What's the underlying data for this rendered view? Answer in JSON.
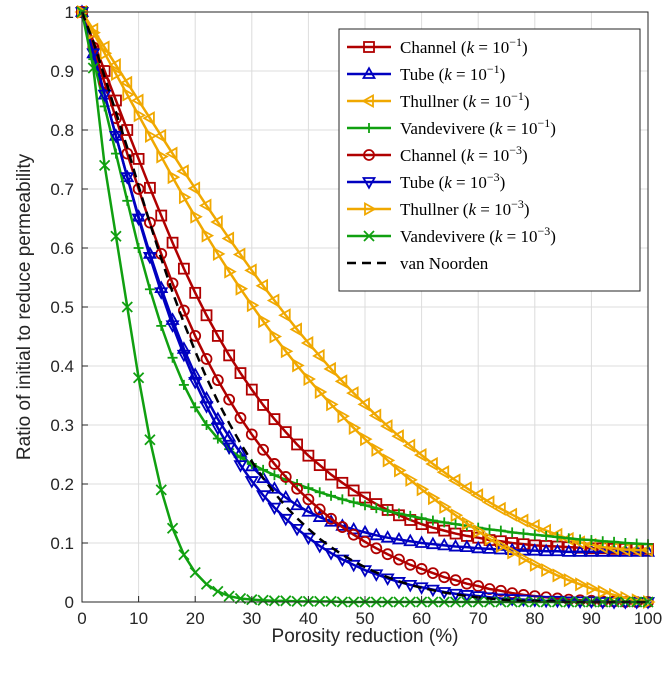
{
  "chart_data": {
    "type": "line",
    "xlabel": "Porosity reduction (%)",
    "ylabel": "Ratio of initial to reduce permeability",
    "xlim": [
      0,
      100
    ],
    "ylim": [
      0,
      1
    ],
    "x_ticks": [
      "0",
      "10",
      "20",
      "30",
      "40",
      "50",
      "60",
      "70",
      "80",
      "90",
      "100"
    ],
    "y_ticks": [
      "0",
      "0.1",
      "0.2",
      "0.3",
      "0.4",
      "0.5",
      "0.6",
      "0.7",
      "0.8",
      "0.9",
      "1"
    ],
    "grid": true,
    "legend_position": "top-right",
    "x": [
      0,
      2,
      4,
      6,
      8,
      10,
      12,
      14,
      16,
      18,
      20,
      22,
      24,
      26,
      28,
      30,
      32,
      34,
      36,
      38,
      40,
      42,
      44,
      46,
      48,
      50,
      52,
      54,
      56,
      58,
      60,
      62,
      64,
      66,
      68,
      70,
      72,
      74,
      76,
      78,
      80,
      82,
      84,
      86,
      88,
      90,
      92,
      94,
      96,
      98,
      100
    ],
    "series": [
      {
        "name": "Channel (k = 10^-1)",
        "color": "#b00000",
        "marker": "square",
        "values": [
          1.0,
          0.95,
          0.9,
          0.85,
          0.8,
          0.751,
          0.702,
          0.655,
          0.609,
          0.565,
          0.524,
          0.486,
          0.451,
          0.418,
          0.388,
          0.36,
          0.334,
          0.31,
          0.288,
          0.267,
          0.248,
          0.232,
          0.216,
          0.202,
          0.189,
          0.177,
          0.166,
          0.156,
          0.147,
          0.139,
          0.132,
          0.126,
          0.121,
          0.116,
          0.112,
          0.109,
          0.105,
          0.103,
          0.1,
          0.098,
          0.096,
          0.095,
          0.094,
          0.093,
          0.092,
          0.091,
          0.091,
          0.09,
          0.09,
          0.09,
          0.09
        ]
      },
      {
        "name": "Tube (k = 10^-1)",
        "color": "#0000c0",
        "marker": "triangle-up",
        "values": [
          1.0,
          0.93,
          0.86,
          0.79,
          0.72,
          0.653,
          0.59,
          0.532,
          0.478,
          0.429,
          0.385,
          0.345,
          0.31,
          0.28,
          0.253,
          0.23,
          0.21,
          0.192,
          0.177,
          0.164,
          0.153,
          0.144,
          0.136,
          0.129,
          0.123,
          0.118,
          0.113,
          0.109,
          0.106,
          0.103,
          0.1,
          0.098,
          0.096,
          0.094,
          0.093,
          0.091,
          0.09,
          0.089,
          0.088,
          0.087,
          0.087,
          0.086,
          0.086,
          0.085,
          0.085,
          0.085,
          0.085,
          0.085,
          0.085,
          0.085,
          0.085
        ]
      },
      {
        "name": "Thullner (k = 10^-1)",
        "color": "#f0a800",
        "marker": "triangle-left",
        "values": [
          1.0,
          0.97,
          0.94,
          0.91,
          0.88,
          0.85,
          0.82,
          0.79,
          0.76,
          0.73,
          0.701,
          0.672,
          0.644,
          0.616,
          0.589,
          0.562,
          0.536,
          0.511,
          0.486,
          0.462,
          0.439,
          0.417,
          0.395,
          0.374,
          0.354,
          0.335,
          0.316,
          0.298,
          0.281,
          0.265,
          0.249,
          0.234,
          0.22,
          0.206,
          0.193,
          0.181,
          0.169,
          0.158,
          0.148,
          0.138,
          0.129,
          0.121,
          0.114,
          0.107,
          0.101,
          0.097,
          0.093,
          0.091,
          0.089,
          0.088,
          0.088
        ]
      },
      {
        "name": "Vandevivere (k = 10^-1)",
        "color": "#10a010",
        "marker": "plus",
        "values": [
          1.0,
          0.92,
          0.84,
          0.76,
          0.68,
          0.6,
          0.53,
          0.468,
          0.414,
          0.368,
          0.33,
          0.3,
          0.277,
          0.259,
          0.245,
          0.234,
          0.224,
          0.215,
          0.207,
          0.2,
          0.193,
          0.186,
          0.18,
          0.174,
          0.169,
          0.164,
          0.159,
          0.154,
          0.15,
          0.146,
          0.142,
          0.138,
          0.135,
          0.132,
          0.129,
          0.126,
          0.123,
          0.121,
          0.118,
          0.116,
          0.114,
          0.112,
          0.11,
          0.108,
          0.106,
          0.105,
          0.103,
          0.102,
          0.1,
          0.099,
          0.098
        ]
      },
      {
        "name": "Channel (k = 10^-3)",
        "color": "#b00000",
        "marker": "circle",
        "values": [
          1.0,
          0.94,
          0.88,
          0.82,
          0.76,
          0.7,
          0.643,
          0.59,
          0.54,
          0.494,
          0.451,
          0.412,
          0.376,
          0.343,
          0.312,
          0.284,
          0.258,
          0.234,
          0.212,
          0.192,
          0.174,
          0.157,
          0.141,
          0.127,
          0.114,
          0.102,
          0.091,
          0.081,
          0.072,
          0.063,
          0.056,
          0.049,
          0.042,
          0.037,
          0.031,
          0.027,
          0.022,
          0.019,
          0.015,
          0.012,
          0.01,
          0.008,
          0.006,
          0.004,
          0.003,
          0.002,
          0.001,
          0.001,
          0.0,
          0.0,
          0.0
        ]
      },
      {
        "name": "Tube (k = 10^-3)",
        "color": "#0000c0",
        "marker": "triangle-down",
        "values": [
          1.0,
          0.93,
          0.86,
          0.79,
          0.72,
          0.65,
          0.585,
          0.525,
          0.469,
          0.419,
          0.373,
          0.332,
          0.295,
          0.262,
          0.232,
          0.205,
          0.181,
          0.16,
          0.141,
          0.124,
          0.109,
          0.095,
          0.083,
          0.072,
          0.063,
          0.054,
          0.047,
          0.04,
          0.034,
          0.029,
          0.025,
          0.021,
          0.017,
          0.014,
          0.012,
          0.01,
          0.008,
          0.006,
          0.005,
          0.004,
          0.003,
          0.002,
          0.002,
          0.001,
          0.001,
          0.001,
          0.0,
          0.0,
          0.0,
          0.0,
          0.0
        ]
      },
      {
        "name": "Thullner (k = 10^-3)",
        "color": "#f0a800",
        "marker": "triangle-right",
        "values": [
          1.0,
          0.965,
          0.93,
          0.895,
          0.86,
          0.825,
          0.79,
          0.755,
          0.72,
          0.686,
          0.653,
          0.621,
          0.59,
          0.56,
          0.531,
          0.503,
          0.476,
          0.45,
          0.425,
          0.401,
          0.378,
          0.356,
          0.335,
          0.315,
          0.295,
          0.276,
          0.258,
          0.24,
          0.223,
          0.207,
          0.191,
          0.176,
          0.161,
          0.147,
          0.133,
          0.12,
          0.107,
          0.095,
          0.084,
          0.073,
          0.063,
          0.054,
          0.045,
          0.037,
          0.03,
          0.023,
          0.017,
          0.012,
          0.007,
          0.003,
          0.0
        ]
      },
      {
        "name": "Vandevivere (k = 10^-3)",
        "color": "#10a010",
        "marker": "x",
        "values": [
          1.0,
          0.905,
          0.74,
          0.62,
          0.5,
          0.38,
          0.275,
          0.19,
          0.125,
          0.08,
          0.05,
          0.03,
          0.018,
          0.01,
          0.006,
          0.004,
          0.003,
          0.002,
          0.002,
          0.001,
          0.001,
          0.001,
          0.001,
          0.0,
          0.0,
          0.0,
          0.0,
          0.0,
          0.0,
          0.0,
          0.0,
          0.0,
          0.0,
          0.0,
          0.0,
          0.0,
          0.0,
          0.0,
          0.0,
          0.0,
          0.0,
          0.0,
          0.0,
          0.0,
          0.0,
          0.0,
          0.0,
          0.0,
          0.0,
          0.0,
          0.0
        ]
      },
      {
        "name": "van Noorden",
        "color": "#000000",
        "marker": "none",
        "dashed": true,
        "values": [
          1.0,
          0.95,
          0.89,
          0.83,
          0.77,
          0.705,
          0.642,
          0.582,
          0.525,
          0.473,
          0.425,
          0.38,
          0.34,
          0.303,
          0.269,
          0.238,
          0.21,
          0.185,
          0.162,
          0.142,
          0.124,
          0.107,
          0.093,
          0.08,
          0.069,
          0.059,
          0.05,
          0.042,
          0.035,
          0.029,
          0.024,
          0.02,
          0.016,
          0.013,
          0.01,
          0.008,
          0.006,
          0.004,
          0.003,
          0.002,
          0.002,
          0.001,
          0.001,
          0.0,
          0.0,
          0.0,
          0.0,
          0.0,
          0.0,
          0.0,
          0.0
        ]
      }
    ],
    "legend": [
      {
        "label": "Channel",
        "k": "10",
        "exp": "−1"
      },
      {
        "label": "Tube",
        "k": "10",
        "exp": "−1"
      },
      {
        "label": "Thullner",
        "k": "10",
        "exp": "−1"
      },
      {
        "label": "Vandevivere",
        "k": "10",
        "exp": "−1"
      },
      {
        "label": "Channel",
        "k": "10",
        "exp": "−3"
      },
      {
        "label": "Tube",
        "k": "10",
        "exp": "−3"
      },
      {
        "label": "Thullner",
        "k": "10",
        "exp": "−3"
      },
      {
        "label": "Vandevivere",
        "k": "10",
        "exp": "−3"
      },
      {
        "label": "van Noorden",
        "k": "",
        "exp": ""
      }
    ]
  }
}
